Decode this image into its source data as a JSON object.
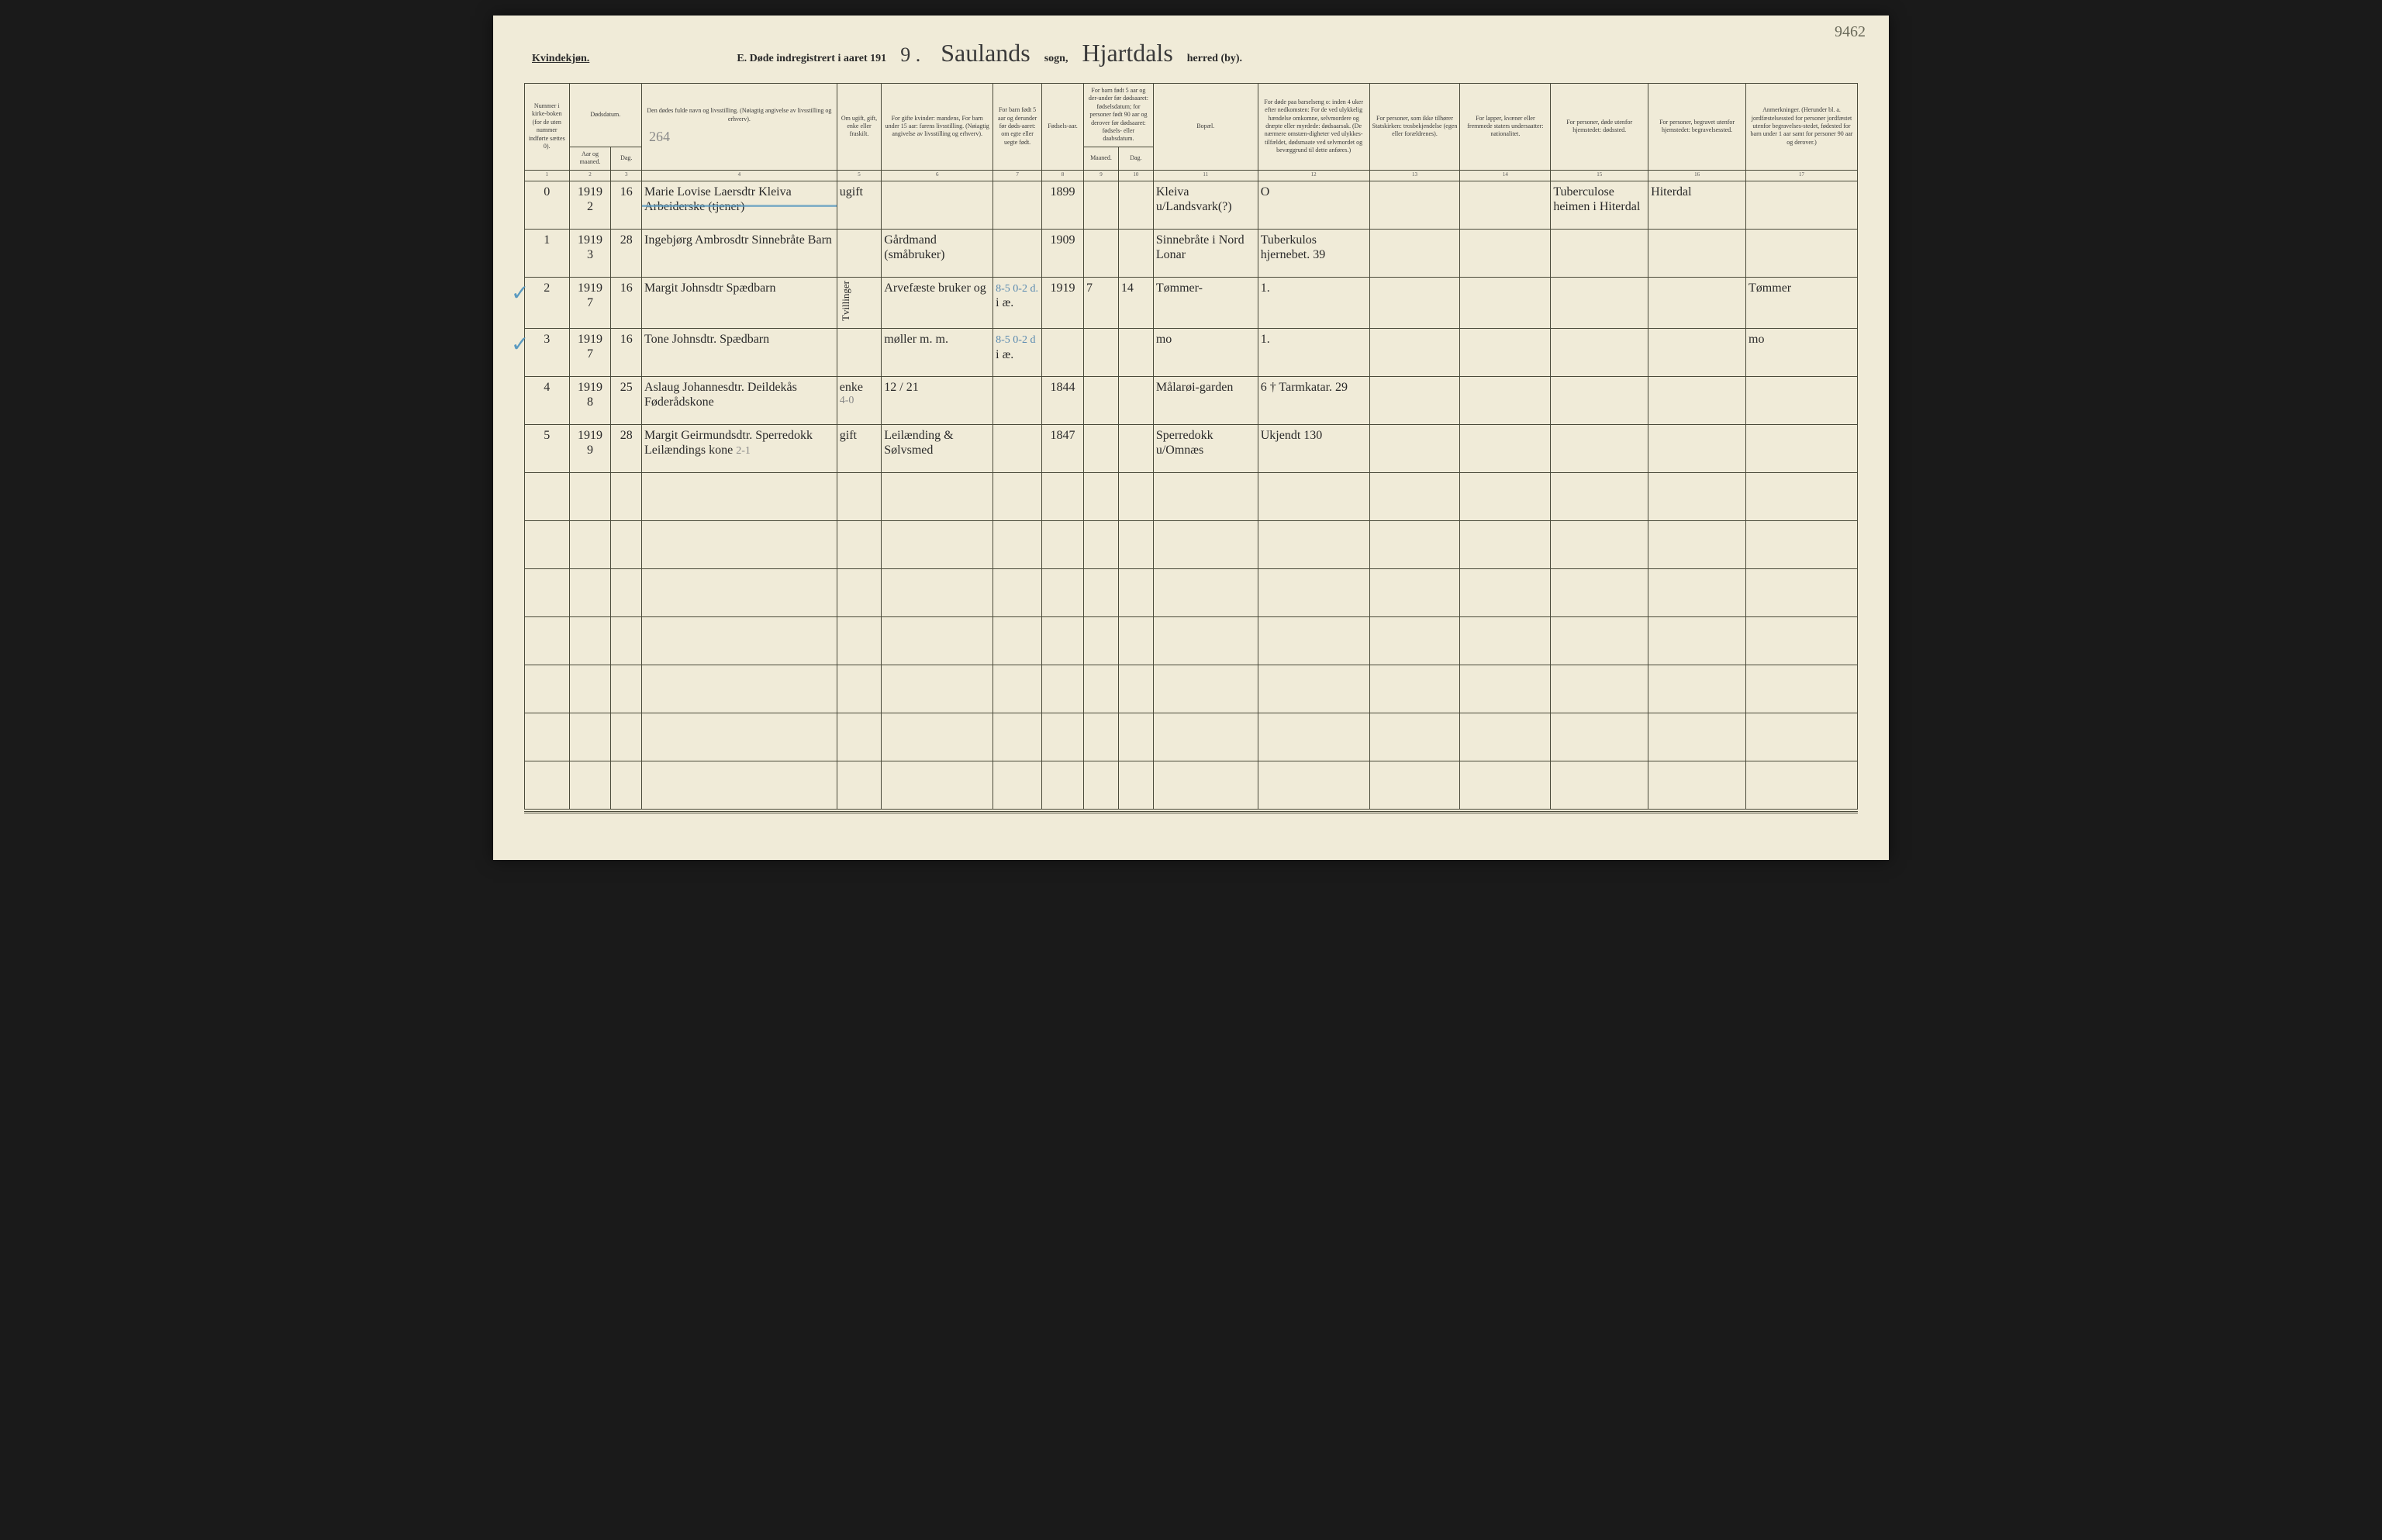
{
  "page_number": "9462",
  "header": {
    "gender": "Kvindekjøn.",
    "title_prefix": "E.  Døde indregistrert i aaret 191",
    "year_suffix": "9 .",
    "sogn_value": "Saulands",
    "sogn_label": "sogn,",
    "herred_value": "Hjartdals",
    "herred_label": "herred (by)."
  },
  "pencil_header": "264",
  "columns": {
    "c1": "Nummer i kirke-boken (for de uten nummer indførte sættes 0).",
    "c2a": "Dødsdatum.",
    "c2": "Aar og maaned.",
    "c3": "Dag.",
    "c4": "Den dødes fulde navn og livsstilling. (Nøiagtig angivelse av livsstilling og erhverv).",
    "c5": "Om ugift, gift, enke eller fraskilt.",
    "c6": "For gifte kvinder: mandens, For barn under 15 aar: farens livsstilling. (Nøiagtig angivelse av livsstilling og erhverv).",
    "c7": "For barn født 5 aar og derunder før døds-aaret: om egte eller uegte født.",
    "c8": "Fødsels-aar.",
    "c9_10a": "For barn født 5 aar og der-under før dødsaaret: fødselsdatum; for personer født 90 aar og derover før dødsaaret: fødsels- eller daabsdatum.",
    "c9": "Maaned.",
    "c10": "Dag.",
    "c11": "Bopæl.",
    "c12": "For døde paa barselseng o: inden 4 uker efter nedkomsten: For de ved ulykkelig hændelse omkomne, selvmordere og dræpte eller myrdede: dødsaarsak. (De nærmere omstæn-digheter ved ulykkes-tilfældet, dødsmaate ved selvmordet og bevæggrund til dette anføres.)",
    "c13": "For personer, som ikke tilhører Statskirken: trosbekjendelse (egen eller forældrenes).",
    "c14": "For lapper, kvæner eller fremmede staters undersaatter: nationalitet.",
    "c15": "For personer, døde utenfor hjemstedet: dødssted.",
    "c16": "For personer, begravet utenfor hjemstedet: begravelsessted.",
    "c17": "Anmerkninger. (Herunder bl. a. jordfæstelsessted for personer jordfæstet utenfor begravelses-stedet, fødested for barn under 1 aar samt for personer 90 aar og derover.)"
  },
  "colnums": [
    "1",
    "2",
    "3",
    "4",
    "5",
    "6",
    "7",
    "8",
    "9",
    "10",
    "11",
    "12",
    "13",
    "14",
    "15",
    "16",
    "17"
  ],
  "rows": [
    {
      "num": "0",
      "year_month": "1919 2",
      "day": "16",
      "name": "Marie Lovise Laersdtr Kleiva  Arbeiderske (tjener)",
      "status": "ugift",
      "parent": "",
      "legit": "",
      "birth_year": "1899",
      "bm": "",
      "bd": "",
      "residence": "Kleiva u/Landsvark(?)",
      "cause": "O",
      "faith": "",
      "nat": "",
      "death_place": "Tuberculose heimen i Hiterdal",
      "burial": "Hiterdal",
      "remarks": "",
      "struck_blue": true
    },
    {
      "num": "1",
      "year_month": "1919 3",
      "day": "28",
      "name": "Ingebjørg Ambrosdtr Sinnebråte  Barn",
      "status": "",
      "parent": "Gårdmand (småbruker)",
      "legit": "",
      "birth_year": "1909",
      "bm": "",
      "bd": "",
      "residence": "Sinnebråte i Nord Lonar",
      "cause": "Tuberkulos hjernebet.  39",
      "faith": "",
      "nat": "",
      "death_place": "",
      "burial": "",
      "remarks": ""
    },
    {
      "num": "2",
      "year_month": "1919 7",
      "day": "16",
      "name": "Margit Johnsdtr  Spædbarn",
      "status": "",
      "parent": "Arvefæste bruker og",
      "legit": "i æ.",
      "birth_year": "1919",
      "bm": "7",
      "bd": "14",
      "residence": "Tømmer-",
      "cause": "1.",
      "faith": "",
      "nat": "",
      "death_place": "",
      "burial": "",
      "remarks": "Tømmer",
      "pencil_top": "8-5  0-2 d.",
      "check": true,
      "twin": "Tvillinger"
    },
    {
      "num": "3",
      "year_month": "1919 7",
      "day": "16",
      "name": "Tone Johnsdtr.  Spædbarn",
      "status": "",
      "parent": "møller m. m.",
      "legit": "i æ.",
      "birth_year": "",
      "bm": "",
      "bd": "",
      "residence": "mo",
      "cause": "1.",
      "faith": "",
      "nat": "",
      "death_place": "",
      "burial": "",
      "remarks": "mo",
      "pencil_top": "8-5  0-2 d",
      "check": true
    },
    {
      "num": "4",
      "year_month": "1919 8",
      "day": "25",
      "name": "Aslaug Johannesdtr. Deildekås  Føderådskone",
      "status": "enke",
      "parent": "12 / 21",
      "legit": "",
      "birth_year": "1844",
      "bm": "",
      "bd": "",
      "residence": "Målarøi-garden",
      "cause": "6  †  Tarmkatar. 29",
      "faith": "",
      "nat": "",
      "death_place": "",
      "burial": "",
      "remarks": "",
      "pencil_status": "4-0"
    },
    {
      "num": "5",
      "year_month": "1919 9",
      "day": "28",
      "name": "Margit Geirmundsdtr. Sperredokk  Leilændings kone",
      "status": "gift",
      "parent": "Leilænding & Sølvsmed",
      "legit": "",
      "birth_year": "1847",
      "bm": "",
      "bd": "",
      "residence": "Sperredokk u/Omnæs",
      "cause": "Ukjendt  130",
      "faith": "",
      "nat": "",
      "death_place": "",
      "burial": "",
      "remarks": "",
      "pencil_name": "2-1"
    }
  ],
  "empty_rows": 7
}
